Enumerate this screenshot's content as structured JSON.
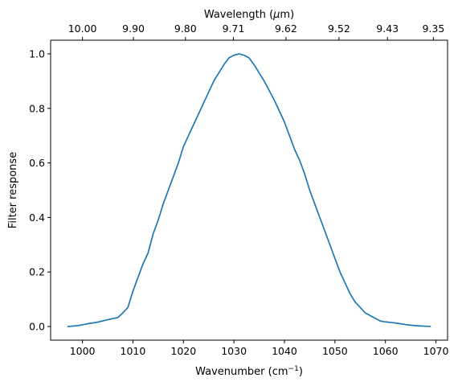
{
  "chart_data": {
    "type": "line",
    "title": "",
    "xlabel": "Wavenumber (cm",
    "xlabel_sup": "−1",
    "xlabel_end": ")",
    "ylabel": "Filter response",
    "top_xlabel": "Wavelength (",
    "top_xlabel_mu": "μ",
    "top_xlabel_end": "m)",
    "xlim": [
      993.7,
      1072.3
    ],
    "ylim": [
      -0.05,
      1.05
    ],
    "grid": false,
    "x_ticks": [
      1000,
      1010,
      1020,
      1030,
      1040,
      1050,
      1060,
      1070
    ],
    "x_tick_labels": [
      "1000",
      "1010",
      "1020",
      "1030",
      "1040",
      "1050",
      "1060",
      "1070"
    ],
    "y_ticks": [
      0.0,
      0.2,
      0.4,
      0.6,
      0.8,
      1.0
    ],
    "y_tick_labels": [
      "0.0",
      "0.2",
      "0.4",
      "0.6",
      "0.8",
      "1.0"
    ],
    "top_ticks": [
      {
        "wavenumber": 1000.0,
        "label": "10.00"
      },
      {
        "wavenumber": 1010.1,
        "label": "9.90"
      },
      {
        "wavenumber": 1020.4,
        "label": "9.80"
      },
      {
        "wavenumber": 1029.9,
        "label": "9.71"
      },
      {
        "wavenumber": 1040.3,
        "label": "9.62"
      },
      {
        "wavenumber": 1050.8,
        "label": "9.52"
      },
      {
        "wavenumber": 1060.4,
        "label": "9.43"
      },
      {
        "wavenumber": 1069.5,
        "label": "9.35"
      }
    ],
    "series": [
      {
        "color": "#1f77b4",
        "x": [
          997,
          999,
          1001,
          1003,
          1005,
          1007,
          1008,
          1009,
          1010,
          1011,
          1012,
          1013,
          1014,
          1015,
          1016,
          1017,
          1018,
          1019,
          1020,
          1021,
          1022,
          1023,
          1024,
          1025,
          1026,
          1027,
          1028,
          1029,
          1030,
          1031,
          1032,
          1033,
          1034,
          1035,
          1036,
          1037,
          1038,
          1039,
          1040,
          1041,
          1042,
          1043,
          1044,
          1045,
          1046,
          1047,
          1048,
          1049,
          1050,
          1051,
          1052,
          1053,
          1054,
          1055,
          1056,
          1057,
          1058,
          1059,
          1060,
          1061,
          1062,
          1063,
          1064,
          1065,
          1066,
          1067,
          1068,
          1069
        ],
        "y": [
          0.0,
          0.003,
          0.01,
          0.016,
          0.025,
          0.033,
          0.05,
          0.07,
          0.13,
          0.18,
          0.23,
          0.27,
          0.34,
          0.39,
          0.45,
          0.5,
          0.55,
          0.6,
          0.66,
          0.7,
          0.74,
          0.78,
          0.82,
          0.86,
          0.9,
          0.93,
          0.96,
          0.985,
          0.995,
          1.0,
          0.995,
          0.985,
          0.96,
          0.93,
          0.9,
          0.865,
          0.83,
          0.79,
          0.75,
          0.7,
          0.65,
          0.61,
          0.56,
          0.5,
          0.45,
          0.4,
          0.35,
          0.3,
          0.25,
          0.2,
          0.16,
          0.12,
          0.09,
          0.07,
          0.05,
          0.04,
          0.03,
          0.02,
          0.017,
          0.015,
          0.013,
          0.01,
          0.007,
          0.005,
          0.003,
          0.002,
          0.001,
          0.0
        ]
      }
    ]
  }
}
